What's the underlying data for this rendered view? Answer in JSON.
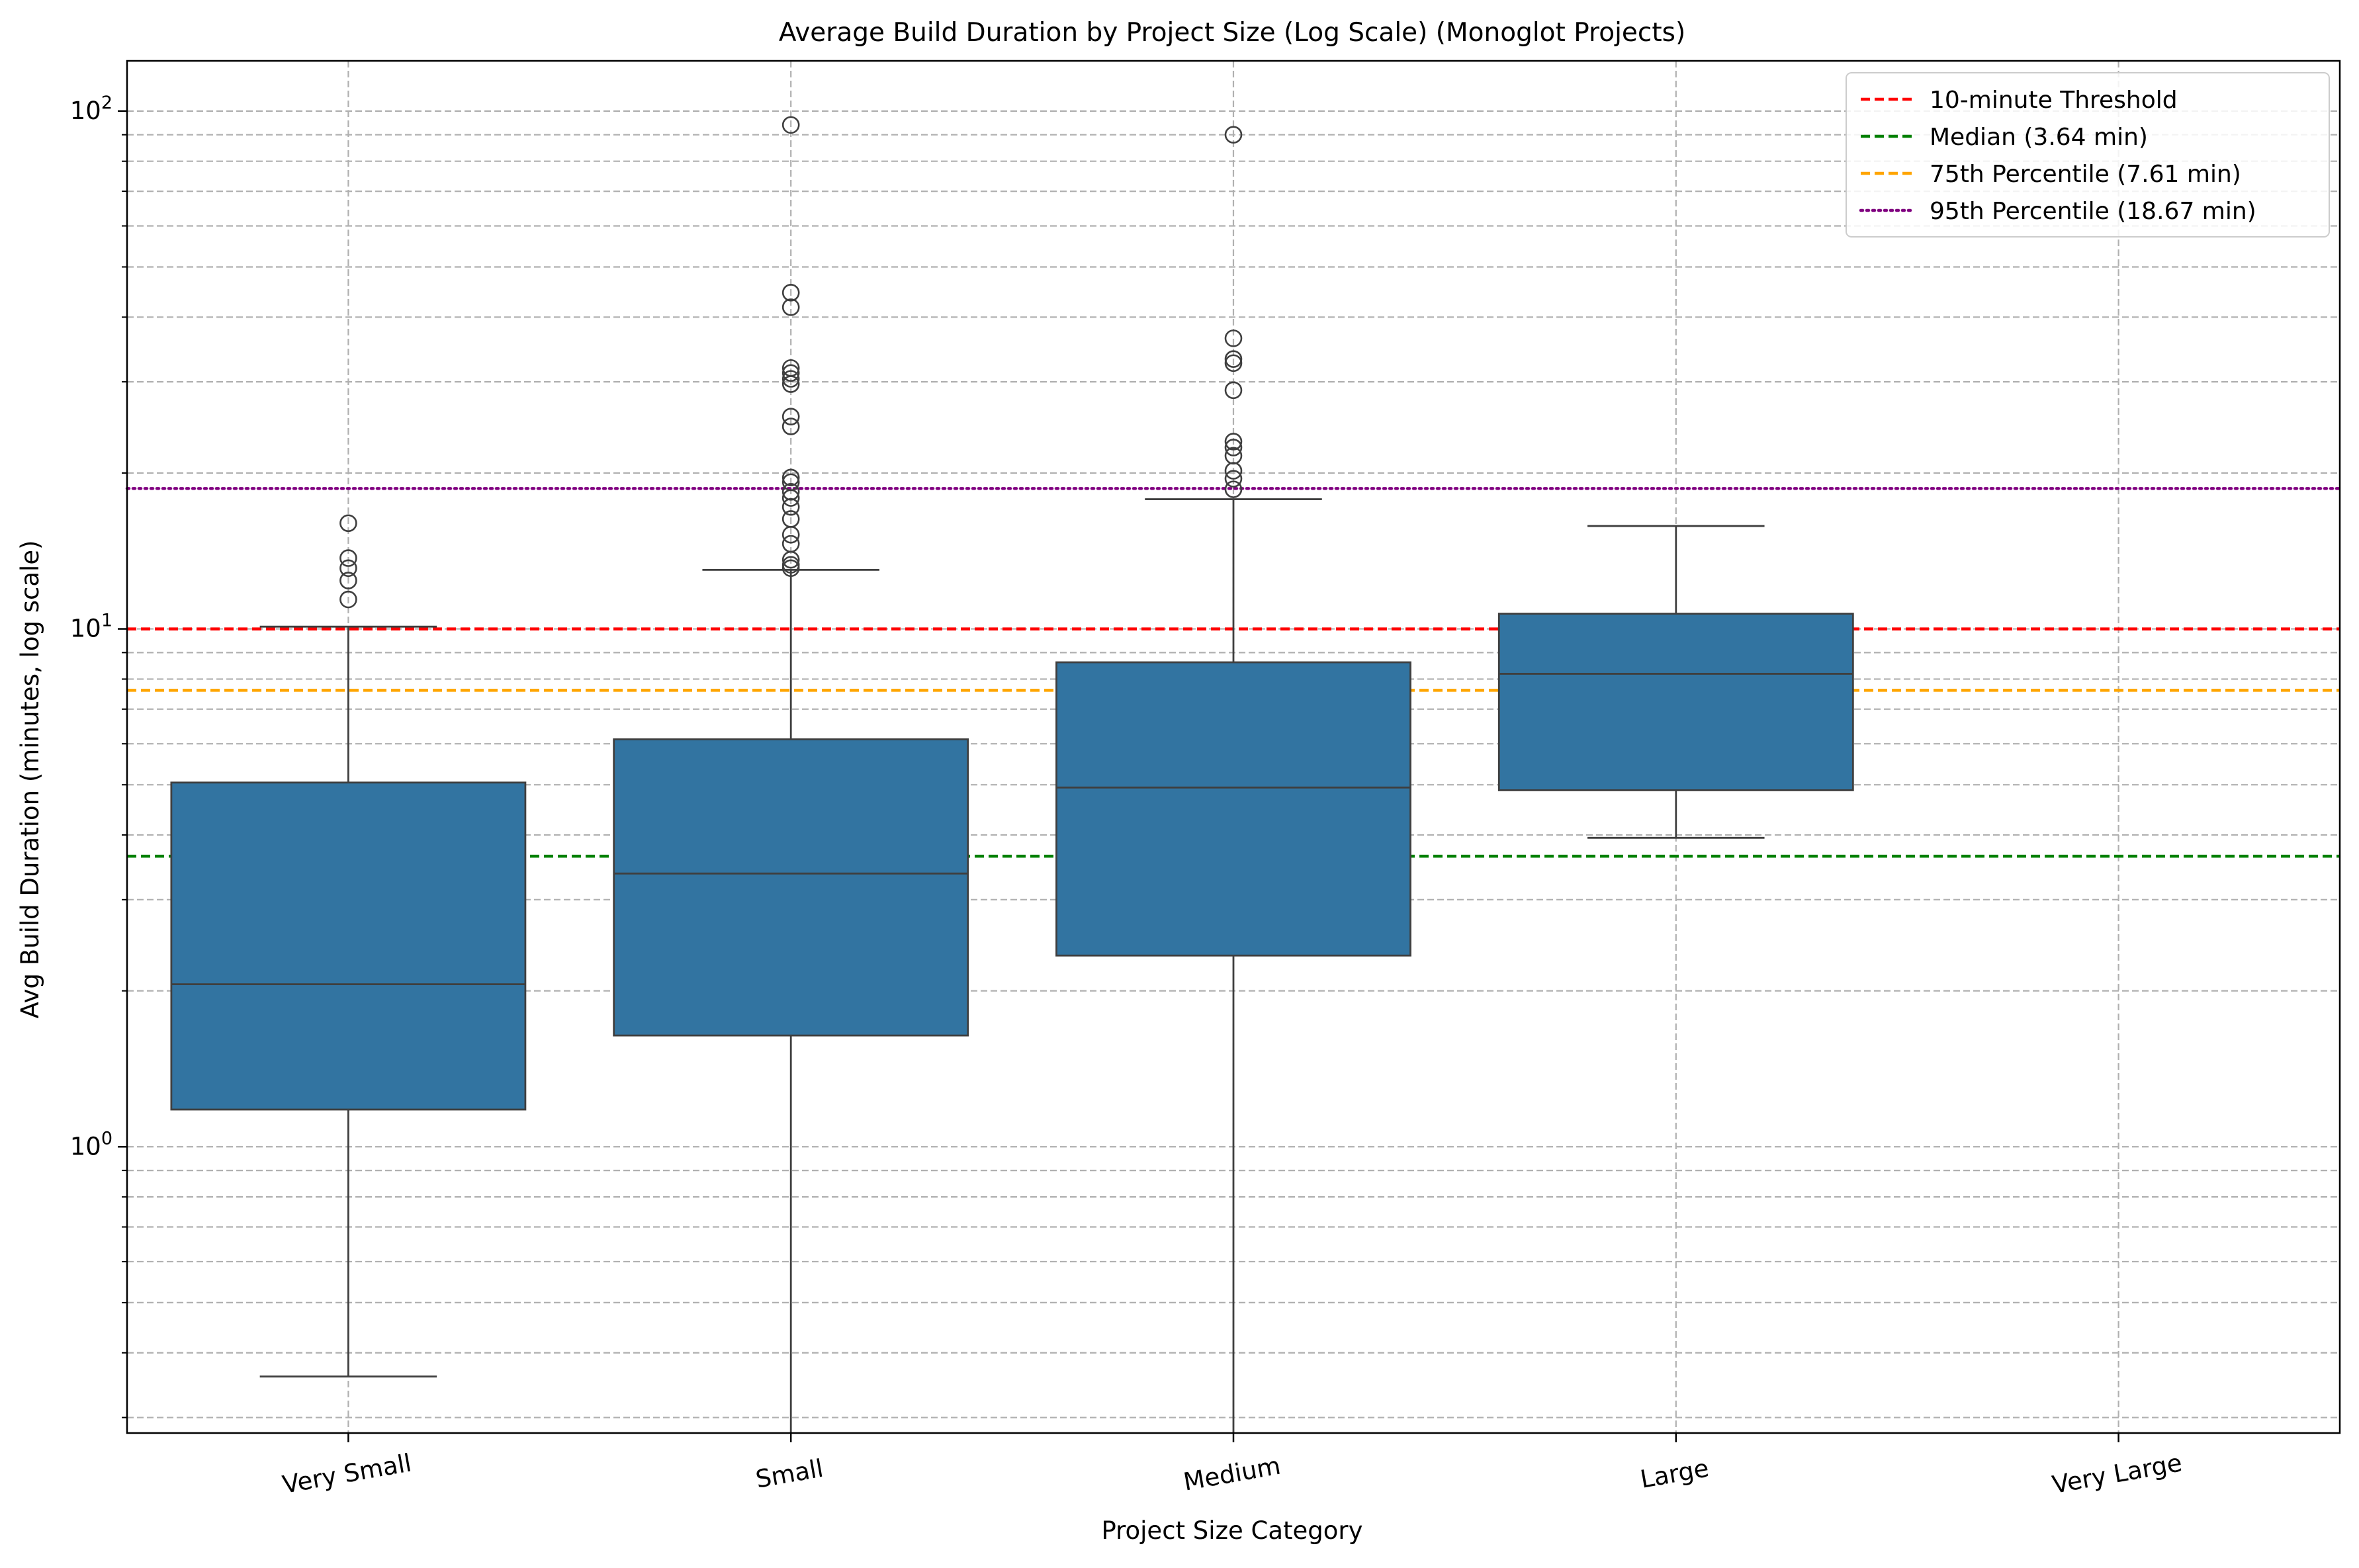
{
  "chart_data": {
    "type": "box",
    "title": "Average Build Duration by Project Size (Log Scale) (Monoglot Projects)",
    "xlabel": "Project Size Category",
    "ylabel": "Avg Build Duration (minutes, log scale)",
    "yscale": "log",
    "ylim": [
      0.28,
      125
    ],
    "y_tick_labels": [
      {
        "value": 1,
        "label": "10",
        "exp": "0"
      },
      {
        "value": 10,
        "label": "10",
        "exp": "1"
      },
      {
        "value": 100,
        "label": "10",
        "exp": "2"
      }
    ],
    "grid": true,
    "box_color": "#3274a1",
    "categories": [
      "Very Small",
      "Small",
      "Medium",
      "Large",
      "Very Large"
    ],
    "boxes": [
      {
        "category": "Very Small",
        "whisker_low": 0.36,
        "q1": 1.18,
        "median": 2.06,
        "q3": 5.05,
        "whisker_high": 10.1,
        "outliers": [
          11.4,
          12.4,
          13.1,
          13.7,
          16.0
        ]
      },
      {
        "category": "Small",
        "whisker_low": 0.28,
        "q1": 1.64,
        "median": 3.37,
        "q3": 6.12,
        "whisker_high": 13.0,
        "outliers": [
          13.1,
          13.3,
          13.6,
          14.6,
          15.2,
          16.3,
          17.2,
          17.9,
          18.4,
          19.2,
          19.6,
          24.6,
          25.7,
          29.7,
          30.4,
          31.2,
          31.9,
          41.8,
          44.6,
          94.0
        ]
      },
      {
        "category": "Medium",
        "whisker_low": 0.28,
        "q1": 2.34,
        "median": 4.94,
        "q3": 8.62,
        "whisker_high": 17.8,
        "outliers": [
          18.6,
          19.5,
          20.2,
          21.6,
          22.4,
          23.0,
          28.9,
          32.6,
          33.2,
          36.4,
          90.0
        ]
      },
      {
        "category": "Large",
        "whisker_low": 3.95,
        "q1": 4.88,
        "median": 8.19,
        "q3": 10.7,
        "whisker_high": 15.8,
        "outliers": []
      }
    ],
    "reference_lines": [
      {
        "label": "10-minute Threshold",
        "value": 10.0,
        "color": "#ff0000",
        "style": "dashed"
      },
      {
        "label": "Median (3.64 min)",
        "value": 3.64,
        "color": "#008000",
        "style": "dashed"
      },
      {
        "label": "75th Percentile (7.61 min)",
        "value": 7.61,
        "color": "#ffa500",
        "style": "dashed"
      },
      {
        "label": "95th Percentile (18.67 min)",
        "value": 18.67,
        "color": "#800080",
        "style": "dotted"
      }
    ],
    "legend_position": "top-right"
  }
}
